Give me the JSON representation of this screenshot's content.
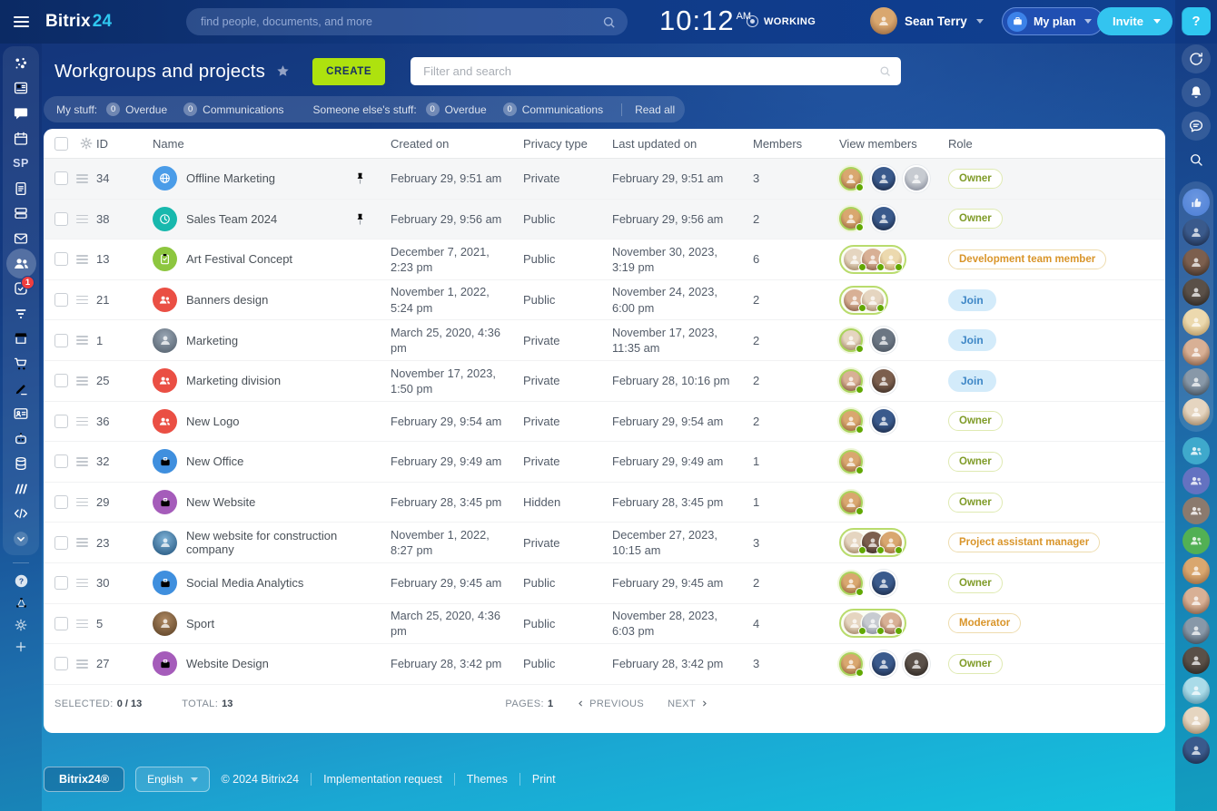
{
  "topbar": {
    "logo_part1": "Bitrix",
    "logo_part2": "24",
    "search_placeholder": "find people, documents, and more",
    "clock_time": "10:12",
    "clock_meridiem": "AM",
    "status_label": "WORKING",
    "user_name": "Sean Terry",
    "my_plan_label": "My plan",
    "invite_label": "Invite",
    "help_label": "?"
  },
  "left_sidebar": {
    "items": [
      {
        "name": "pulse",
        "icon": "pulse"
      },
      {
        "name": "feed",
        "icon": "feed"
      },
      {
        "name": "messenger",
        "icon": "chat"
      },
      {
        "name": "calendar",
        "icon": "calendar"
      },
      {
        "name": "sites",
        "icon": "text",
        "label": "SP"
      },
      {
        "name": "docs",
        "icon": "doc"
      },
      {
        "name": "drive",
        "icon": "drive"
      },
      {
        "name": "mail",
        "icon": "mail"
      },
      {
        "name": "workgroups",
        "icon": "groups",
        "active": true
      },
      {
        "name": "tasks",
        "icon": "tasks",
        "badge": "1"
      },
      {
        "name": "crm",
        "icon": "funnel"
      },
      {
        "name": "market",
        "icon": "store"
      },
      {
        "name": "shop",
        "icon": "cart"
      },
      {
        "name": "sign",
        "icon": "pen"
      },
      {
        "name": "hr",
        "icon": "idcard"
      },
      {
        "name": "copilot",
        "icon": "robot"
      },
      {
        "name": "bi",
        "icon": "db"
      },
      {
        "name": "boost",
        "icon": "slashes"
      },
      {
        "name": "developer",
        "icon": "code"
      },
      {
        "name": "more",
        "icon": "chevcircle"
      }
    ],
    "bottom_items": [
      {
        "name": "helpdesk",
        "icon": "help"
      },
      {
        "name": "structure",
        "icon": "nodes"
      },
      {
        "name": "settings",
        "icon": "gear"
      },
      {
        "name": "add",
        "icon": "plus"
      }
    ]
  },
  "page": {
    "title": "Workgroups and projects",
    "create_label": "CREATE",
    "filter_placeholder": "Filter and search"
  },
  "filters": {
    "groups": [
      {
        "label": "My stuff:",
        "chips": [
          {
            "count": "0",
            "label": "Overdue"
          },
          {
            "count": "0",
            "label": "Communications"
          }
        ]
      },
      {
        "label": "Someone else's stuff:",
        "chips": [
          {
            "count": "0",
            "label": "Overdue"
          },
          {
            "count": "0",
            "label": "Communications"
          }
        ]
      }
    ],
    "read_all_label": "Read all"
  },
  "table": {
    "columns": [
      "ID",
      "Name",
      "Created on",
      "Privacy type",
      "Last updated on",
      "Members",
      "View members",
      "Role"
    ],
    "rows": [
      {
        "id": "34",
        "name": "Offline Marketing",
        "icon": {
          "type": "globe",
          "bg": "#4a9ce8"
        },
        "pinned": true,
        "created": "February 29, 9:51 am",
        "privacy": "Private",
        "updated": "February 29, 9:51 am",
        "members": "3",
        "view": {
          "style": "solo",
          "avatars": [
            "tan",
            "navy",
            "gray"
          ]
        },
        "role": {
          "label": "Owner",
          "type": "owner"
        }
      },
      {
        "id": "38",
        "name": "Sales Team 2024",
        "icon": {
          "type": "clock",
          "bg": "#18b8ad"
        },
        "pinned": true,
        "created": "February 29, 9:56 am",
        "privacy": "Public",
        "updated": "February 29, 9:56 am",
        "members": "2",
        "view": {
          "style": "solo",
          "avatars": [
            "tan",
            "navy"
          ]
        },
        "role": {
          "label": "Owner",
          "type": "owner"
        }
      },
      {
        "id": "13",
        "name": "Art Festival Concept",
        "icon": {
          "type": "clipboard",
          "bg": "#8dc63f"
        },
        "pinned": false,
        "created": "December 7, 2021, 2:23 pm",
        "privacy": "Public",
        "updated": "November 30, 2023, 3:19 pm",
        "members": "6",
        "view": {
          "style": "pill",
          "avatars": [
            "boy",
            "woman",
            "blonde"
          ]
        },
        "role": {
          "label": "Development team member",
          "type": "member"
        }
      },
      {
        "id": "21",
        "name": "Banners design",
        "icon": {
          "type": "people",
          "bg": "#ea4f44"
        },
        "pinned": false,
        "created": "November 1, 2022, 5:24 pm",
        "privacy": "Public",
        "updated": "November 24, 2023, 6:00 pm",
        "members": "2",
        "view": {
          "style": "pill",
          "avatars": [
            "woman",
            "boy"
          ]
        },
        "role": {
          "label": "Join",
          "type": "join"
        }
      },
      {
        "id": "1",
        "name": "Marketing",
        "icon": {
          "type": "photo",
          "color": "street"
        },
        "pinned": false,
        "created": "March 25, 2020, 4:36 pm",
        "privacy": "Private",
        "updated": "November 17, 2023, 11:35 am",
        "members": "2",
        "view": {
          "style": "solo",
          "avatars": [
            "boy",
            "default"
          ]
        },
        "role": {
          "label": "Join",
          "type": "join"
        }
      },
      {
        "id": "25",
        "name": "Marketing division",
        "icon": {
          "type": "people",
          "bg": "#ea4f44"
        },
        "pinned": false,
        "created": "November 17, 2023, 1:50 pm",
        "privacy": "Private",
        "updated": "February 28, 10:16 pm",
        "members": "2",
        "view": {
          "style": "solo",
          "avatars": [
            "woman",
            "afro"
          ]
        },
        "role": {
          "label": "Join",
          "type": "join"
        }
      },
      {
        "id": "36",
        "name": "New Logo",
        "icon": {
          "type": "people",
          "bg": "#ea4f44"
        },
        "pinned": false,
        "created": "February 29, 9:54 am",
        "privacy": "Private",
        "updated": "February 29, 9:54 am",
        "members": "2",
        "view": {
          "style": "solo",
          "avatars": [
            "tan",
            "navy"
          ]
        },
        "role": {
          "label": "Owner",
          "type": "owner"
        }
      },
      {
        "id": "32",
        "name": "New Office",
        "icon": {
          "type": "briefcase",
          "bg": "#3f8fde"
        },
        "pinned": false,
        "created": "February 29, 9:49 am",
        "privacy": "Private",
        "updated": "February 29, 9:49 am",
        "members": "1",
        "view": {
          "style": "solo",
          "avatars": [
            "tan"
          ]
        },
        "role": {
          "label": "Owner",
          "type": "owner"
        }
      },
      {
        "id": "29",
        "name": "New Website",
        "icon": {
          "type": "briefcase",
          "bg": "#a55cba"
        },
        "pinned": false,
        "created": "February 28, 3:45 pm",
        "privacy": "Hidden",
        "updated": "February 28, 3:45 pm",
        "members": "1",
        "view": {
          "style": "solo",
          "avatars": [
            "tan"
          ]
        },
        "role": {
          "label": "Owner",
          "type": "owner"
        }
      },
      {
        "id": "23",
        "name": "New website for construction company",
        "icon": {
          "type": "photo",
          "color": "sea"
        },
        "pinned": false,
        "created": "November 1, 2022, 8:27 pm",
        "privacy": "Private",
        "updated": "December 27, 2023, 10:15 am",
        "members": "3",
        "view": {
          "style": "pill",
          "avatars": [
            "boy",
            "afro",
            "tan"
          ]
        },
        "role": {
          "label": "Project assistant manager",
          "type": "member"
        }
      },
      {
        "id": "30",
        "name": "Social Media Analytics",
        "icon": {
          "type": "briefcase",
          "bg": "#3f8fde"
        },
        "pinned": false,
        "created": "February 29, 9:45 am",
        "privacy": "Public",
        "updated": "February 29, 9:45 am",
        "members": "2",
        "view": {
          "style": "solo",
          "avatars": [
            "tan",
            "navy"
          ]
        },
        "role": {
          "label": "Owner",
          "type": "owner"
        }
      },
      {
        "id": "5",
        "name": "Sport",
        "icon": {
          "type": "photo",
          "color": "brown"
        },
        "pinned": false,
        "created": "March 25, 2020, 4:36 pm",
        "privacy": "Public",
        "updated": "November 28, 2023, 6:03 pm",
        "members": "4",
        "view": {
          "style": "pill",
          "avatars": [
            "boy",
            "gray",
            "woman"
          ]
        },
        "role": {
          "label": "Moderator",
          "type": "member"
        }
      },
      {
        "id": "27",
        "name": "Website Design",
        "icon": {
          "type": "briefcase",
          "bg": "#a55cba"
        },
        "pinned": false,
        "created": "February 28, 3:42 pm",
        "privacy": "Public",
        "updated": "February 28, 3:42 pm",
        "members": "3",
        "view": {
          "style": "solo",
          "avatars": [
            "tan",
            "navy",
            "dark"
          ]
        },
        "role": {
          "label": "Owner",
          "type": "owner"
        }
      }
    ],
    "footer": {
      "selected_label": "Selected:",
      "selected_value": "0 / 13",
      "total_label": "Total:",
      "total_value": "13",
      "pages_label": "Pages:",
      "pages_value": "1",
      "prev_label": "Previous",
      "next_label": "Next"
    }
  },
  "page_footer": {
    "brand_label": "Bitrix24®",
    "language_label": "English",
    "links": [
      "© 2024 Bitrix24",
      "Implementation request",
      "Themes",
      "Print"
    ]
  },
  "right_sidebar": {
    "help_label": "?",
    "tools": [
      {
        "name": "plan-history",
        "icon": "history"
      },
      {
        "name": "notifications",
        "icon": "bell"
      },
      {
        "name": "messenger-panel",
        "icon": "bubble"
      },
      {
        "name": "search-panel",
        "icon": "search"
      }
    ],
    "member_stack": [
      {
        "name": "likes",
        "type": "like",
        "color": "#4d7fd6"
      },
      {
        "type": "photo",
        "color": "navy"
      },
      {
        "type": "photo",
        "color": "afro"
      },
      {
        "type": "photo",
        "color": "dark"
      },
      {
        "type": "photo",
        "color": "blonde"
      },
      {
        "type": "photo",
        "color": "woman"
      },
      {
        "type": "photo",
        "color": "suit"
      },
      {
        "type": "photo",
        "color": "boy"
      }
    ],
    "group_avatars": [
      {
        "color": "#3fa9cc"
      },
      {
        "color": "#6472c1"
      },
      {
        "color": "#8b7a6e"
      },
      {
        "color": "#52b054"
      }
    ],
    "people_avatars": [
      {
        "color": "tan"
      },
      {
        "color": "woman"
      },
      {
        "color": "suit"
      },
      {
        "color": "dark"
      },
      {
        "color": "cyan"
      },
      {
        "color": "boy"
      },
      {
        "color": "navy"
      }
    ]
  }
}
